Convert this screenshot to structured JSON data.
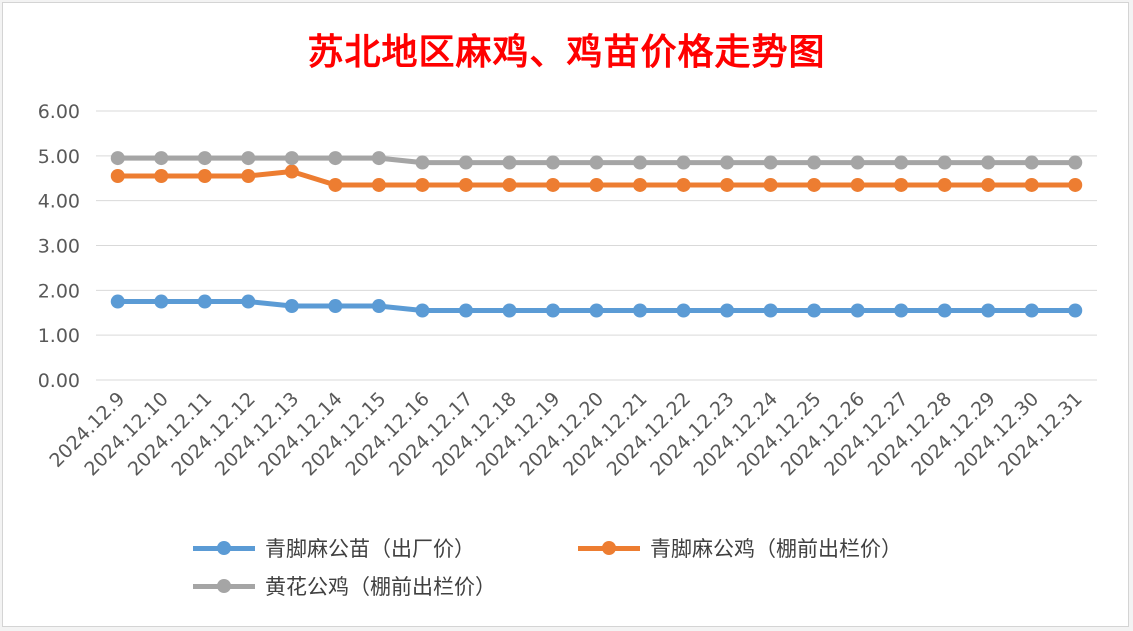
{
  "chart_data": {
    "type": "line",
    "title": "苏北地区麻鸡、鸡苗价格走势图",
    "title_color": "#ff0000",
    "xlabel": "",
    "ylabel": "",
    "ylim": [
      0,
      6
    ],
    "yticks": [
      "0.00",
      "1.00",
      "2.00",
      "3.00",
      "4.00",
      "5.00",
      "6.00"
    ],
    "grid": true,
    "legend_position": "bottom",
    "categories": [
      "2024.12.9",
      "2024.12.10",
      "2024.12.11",
      "2024.12.12",
      "2024.12.13",
      "2024.12.14",
      "2024.12.15",
      "2024.12.16",
      "2024.12.17",
      "2024.12.18",
      "2024.12.19",
      "2024.12.20",
      "2024.12.21",
      "2024.12.22",
      "2024.12.23",
      "2024.12.24",
      "2024.12.25",
      "2024.12.26",
      "2024.12.27",
      "2024.12.28",
      "2024.12.29",
      "2024.12.30",
      "2024.12.31"
    ],
    "series": [
      {
        "name": "青脚麻公苗（出厂价）",
        "color": "#5b9bd5",
        "values": [
          1.75,
          1.75,
          1.75,
          1.75,
          1.65,
          1.65,
          1.65,
          1.55,
          1.55,
          1.55,
          1.55,
          1.55,
          1.55,
          1.55,
          1.55,
          1.55,
          1.55,
          1.55,
          1.55,
          1.55,
          1.55,
          1.55,
          1.55
        ]
      },
      {
        "name": "青脚麻公鸡（棚前出栏价）",
        "color": "#ed7d31",
        "values": [
          4.55,
          4.55,
          4.55,
          4.55,
          4.65,
          4.35,
          4.35,
          4.35,
          4.35,
          4.35,
          4.35,
          4.35,
          4.35,
          4.35,
          4.35,
          4.35,
          4.35,
          4.35,
          4.35,
          4.35,
          4.35,
          4.35,
          4.35
        ]
      },
      {
        "name": "黄花公鸡（棚前出栏价）",
        "color": "#a5a5a5",
        "values": [
          4.95,
          4.95,
          4.95,
          4.95,
          4.95,
          4.95,
          4.95,
          4.85,
          4.85,
          4.85,
          4.85,
          4.85,
          4.85,
          4.85,
          4.85,
          4.85,
          4.85,
          4.85,
          4.85,
          4.85,
          4.85,
          4.85,
          4.85
        ]
      }
    ]
  }
}
